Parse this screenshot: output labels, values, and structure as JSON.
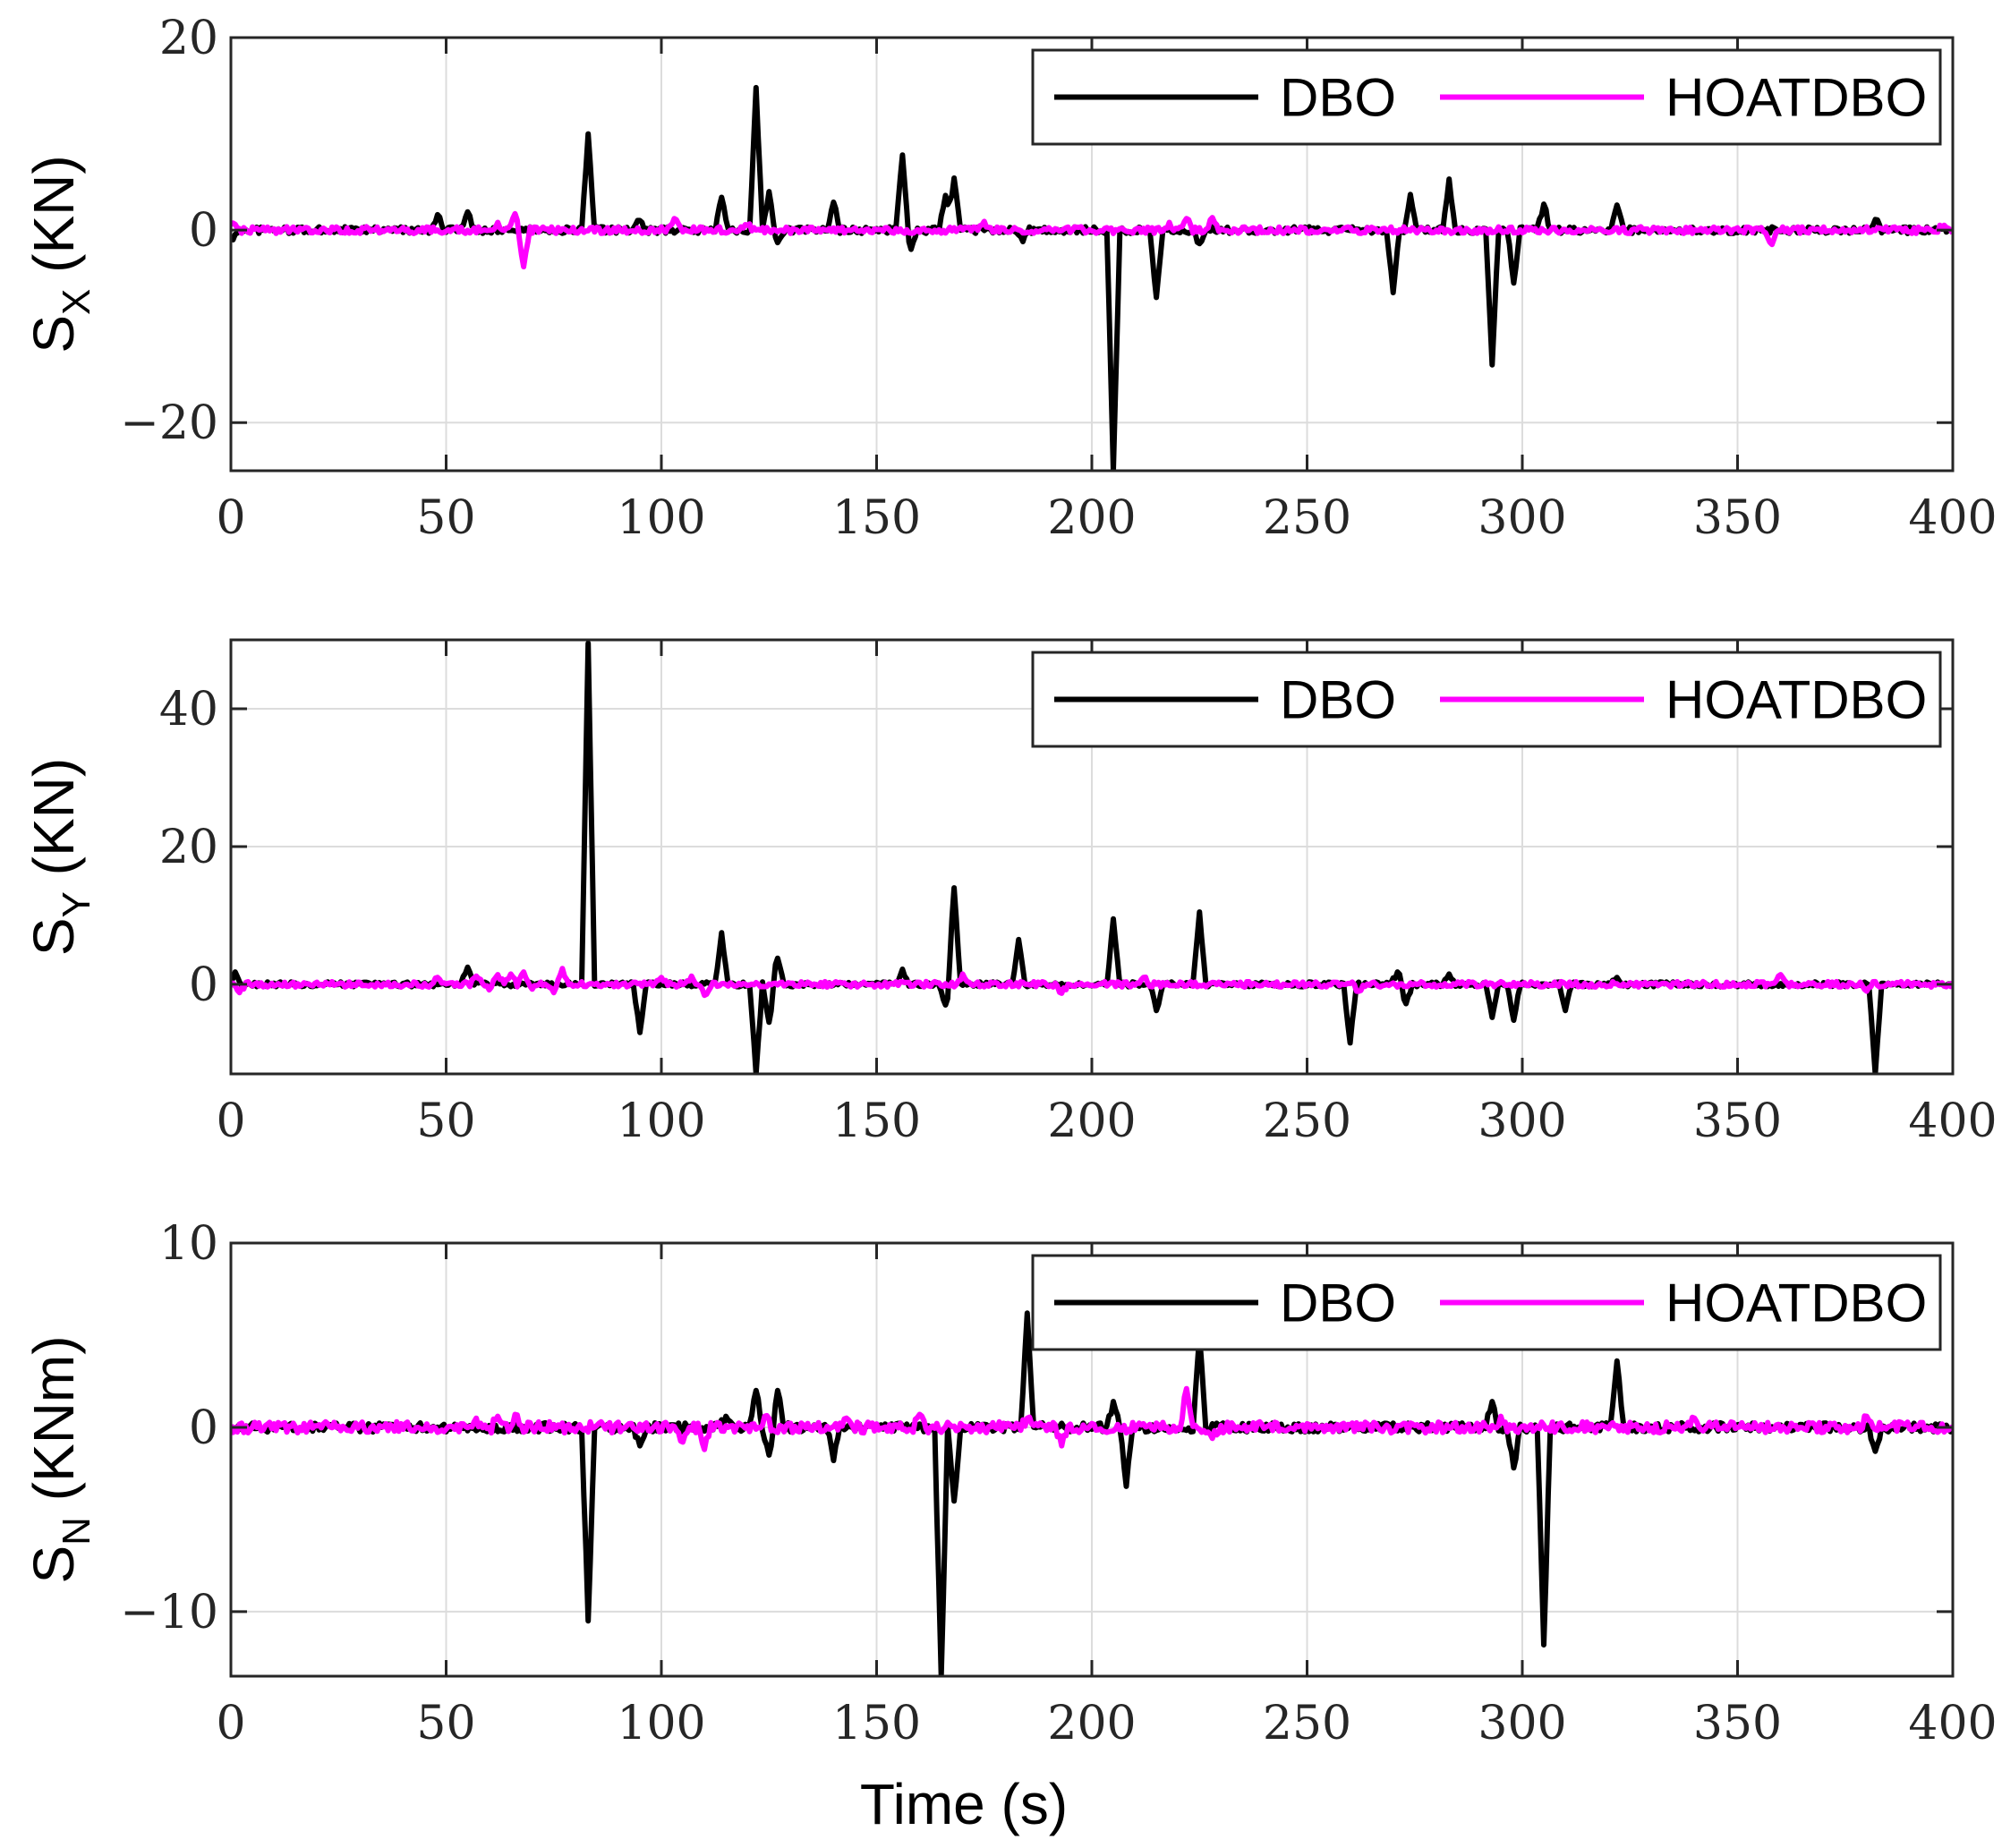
{
  "figure": {
    "xlabel": "Time (s)",
    "legend_labels": [
      "DBO",
      "HOATDBO"
    ],
    "colors": {
      "DBO": "#000000",
      "HOATDBO": "#ff00ff",
      "grid": "#dcdcdc",
      "axes": "#262626"
    }
  },
  "chart_data": [
    {
      "type": "line",
      "ylabel_main": "S",
      "ylabel_sub": "X",
      "ylabel_tail": " (KN)",
      "xlim": [
        0,
        400
      ],
      "ylim": [
        -25,
        20
      ],
      "xticks": [
        0,
        50,
        100,
        150,
        200,
        250,
        300,
        350,
        400
      ],
      "yticks": [
        -20,
        0,
        20
      ],
      "ytick_labels": [
        "−20",
        "0",
        "20"
      ],
      "legend": [
        "DBO",
        "HOATDBO"
      ],
      "series": [
        {
          "name": "DBO",
          "baseline_noise": 0.35,
          "spikes": [
            [
              0.5,
              -1.0
            ],
            [
              48,
              1.6
            ],
            [
              55,
              1.9
            ],
            [
              83,
              10.0
            ],
            [
              95,
              1.0
            ],
            [
              114,
              3.4
            ],
            [
              122,
              14.8
            ],
            [
              125,
              4.0
            ],
            [
              127,
              -1.3
            ],
            [
              140,
              2.9
            ],
            [
              156,
              7.8
            ],
            [
              158,
              -2.0
            ],
            [
              166,
              3.6
            ],
            [
              168,
              5.4
            ],
            [
              184,
              -1.2
            ],
            [
              205,
              -25.0
            ],
            [
              215,
              -7.0
            ],
            [
              225,
              -1.4
            ],
            [
              270,
              -6.5
            ],
            [
              274,
              3.7
            ],
            [
              283,
              5.3
            ],
            [
              293,
              -14.0
            ],
            [
              298,
              -5.5
            ],
            [
              305,
              2.7
            ],
            [
              322,
              2.6
            ],
            [
              382,
              1.1
            ]
          ]
        },
        {
          "name": "HOATDBO",
          "baseline_noise": 0.35,
          "spikes": [
            [
              1,
              0.6
            ],
            [
              62,
              0.8
            ],
            [
              66,
              1.7
            ],
            [
              68,
              -3.8
            ],
            [
              103,
              1.2
            ],
            [
              120,
              0.5
            ],
            [
              175,
              0.9
            ],
            [
              218,
              0.8
            ],
            [
              222,
              1.2
            ],
            [
              228,
              1.3
            ],
            [
              358,
              -1.5
            ],
            [
              398,
              0.5
            ]
          ]
        }
      ]
    },
    {
      "type": "line",
      "ylabel_main": "S",
      "ylabel_sub": "Y",
      "ylabel_tail": " (KN)",
      "xlim": [
        0,
        400
      ],
      "ylim": [
        -13,
        50
      ],
      "xticks": [
        0,
        50,
        100,
        150,
        200,
        250,
        300,
        350,
        400
      ],
      "yticks": [
        0,
        20,
        40
      ],
      "ytick_labels": [
        "0",
        "20",
        "40"
      ],
      "legend": [
        "DBO",
        "HOATDBO"
      ],
      "series": [
        {
          "name": "DBO",
          "baseline_noise": 0.35,
          "spikes": [
            [
              1,
              1.8
            ],
            [
              55,
              2.5
            ],
            [
              83,
              49.5
            ],
            [
              95,
              -7.0
            ],
            [
              114,
              7.5
            ],
            [
              122,
              -13.0
            ],
            [
              125,
              -5.5
            ],
            [
              127,
              3.8
            ],
            [
              156,
              2.2
            ],
            [
              166,
              -3.0
            ],
            [
              168,
              14.0
            ],
            [
              183,
              6.5
            ],
            [
              205,
              9.5
            ],
            [
              215,
              -3.8
            ],
            [
              225,
              10.5
            ],
            [
              260,
              -8.5
            ],
            [
              271,
              1.8
            ],
            [
              273,
              -2.8
            ],
            [
              283,
              1.5
            ],
            [
              293,
              -4.8
            ],
            [
              298,
              -5.2
            ],
            [
              310,
              -3.8
            ],
            [
              322,
              1.0
            ],
            [
              382,
              -13.0
            ]
          ]
        },
        {
          "name": "HOATDBO",
          "baseline_noise": 0.4,
          "spikes": [
            [
              2,
              -1.2
            ],
            [
              48,
              1.0
            ],
            [
              57,
              1.2
            ],
            [
              60,
              -0.8
            ],
            [
              62,
              1.4
            ],
            [
              65,
              1.5
            ],
            [
              68,
              1.8
            ],
            [
              70,
              -0.7
            ],
            [
              75,
              -1.2
            ],
            [
              77,
              2.3
            ],
            [
              100,
              1.0
            ],
            [
              107,
              1.2
            ],
            [
              110,
              -1.6
            ],
            [
              170,
              1.5
            ],
            [
              193,
              -1.3
            ],
            [
              212,
              1.0
            ],
            [
              262,
              -1.0
            ],
            [
              360,
              1.4
            ],
            [
              380,
              -1.0
            ]
          ]
        }
      ]
    },
    {
      "type": "line",
      "ylabel_main": "S",
      "ylabel_sub": "N",
      "ylabel_tail": " (KNm)",
      "xlim": [
        0,
        400
      ],
      "ylim": [
        -13.5,
        10
      ],
      "xticks": [
        0,
        50,
        100,
        150,
        200,
        250,
        300,
        350,
        400
      ],
      "yticks": [
        -10,
        0,
        10
      ],
      "ytick_labels": [
        "−10",
        "0",
        "10"
      ],
      "legend": [
        "DBO",
        "HOATDBO"
      ],
      "series": [
        {
          "name": "DBO",
          "baseline_noise": 0.25,
          "spikes": [
            [
              83,
              -10.5
            ],
            [
              95,
              -1.0
            ],
            [
              115,
              0.6
            ],
            [
              122,
              2.0
            ],
            [
              125,
              -1.5
            ],
            [
              127,
              2.0
            ],
            [
              140,
              -1.8
            ],
            [
              165,
              -13.5
            ],
            [
              168,
              -4.0
            ],
            [
              185,
              6.2
            ],
            [
              205,
              1.4
            ],
            [
              208,
              -3.2
            ],
            [
              225,
              5.0
            ],
            [
              293,
              1.4
            ],
            [
              298,
              -2.2
            ],
            [
              305,
              -11.8
            ],
            [
              322,
              3.6
            ],
            [
              382,
              -1.3
            ]
          ]
        },
        {
          "name": "HOATDBO",
          "baseline_noise": 0.3,
          "spikes": [
            [
              57,
              0.5
            ],
            [
              62,
              0.6
            ],
            [
              66,
              0.7
            ],
            [
              105,
              -0.8
            ],
            [
              110,
              -1.2
            ],
            [
              124,
              0.6
            ],
            [
              143,
              0.5
            ],
            [
              160,
              0.7
            ],
            [
              185,
              0.5
            ],
            [
              193,
              -1.0
            ],
            [
              222,
              2.1
            ],
            [
              228,
              -0.6
            ],
            [
              295,
              0.6
            ],
            [
              340,
              0.5
            ],
            [
              380,
              0.6
            ]
          ]
        }
      ]
    }
  ]
}
